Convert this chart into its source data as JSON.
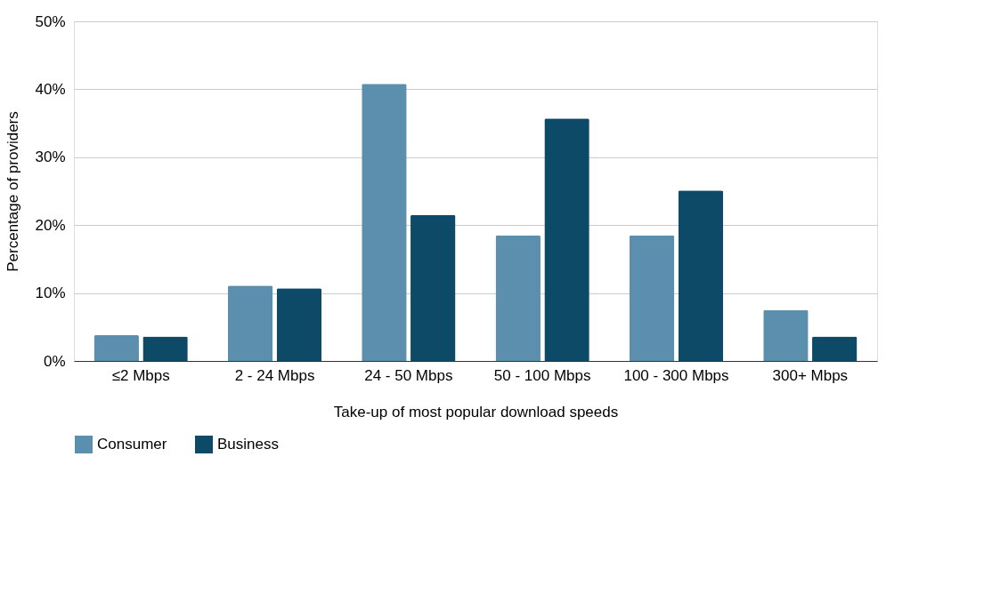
{
  "chart_data": {
    "type": "bar",
    "xlabel": "Take-up of most popular download speeds",
    "ylabel": "Percentage of providers",
    "categories": [
      "≤2 Mbps",
      "2 - 24 Mbps",
      "24 - 50 Mbps",
      "50 - 100 Mbps",
      "100 - 300 Mbps",
      "300+ Mbps"
    ],
    "series": [
      {
        "name": "Consumer",
        "color": "#5b8fad",
        "values": [
          3.8,
          11.1,
          40.8,
          18.5,
          18.5,
          7.5
        ]
      },
      {
        "name": "Business",
        "color": "#0d4a68",
        "values": [
          3.6,
          10.7,
          21.5,
          35.7,
          25.1,
          3.6
        ]
      }
    ],
    "ylim": [
      0,
      50
    ],
    "yticks": [
      {
        "value": 0,
        "label": "0%"
      },
      {
        "value": 10,
        "label": "10%"
      },
      {
        "value": 20,
        "label": "20%"
      },
      {
        "value": 30,
        "label": "30%"
      },
      {
        "value": 40,
        "label": "40%"
      },
      {
        "value": 50,
        "label": "50%"
      }
    ],
    "grid": "y",
    "legend": "bottom"
  }
}
